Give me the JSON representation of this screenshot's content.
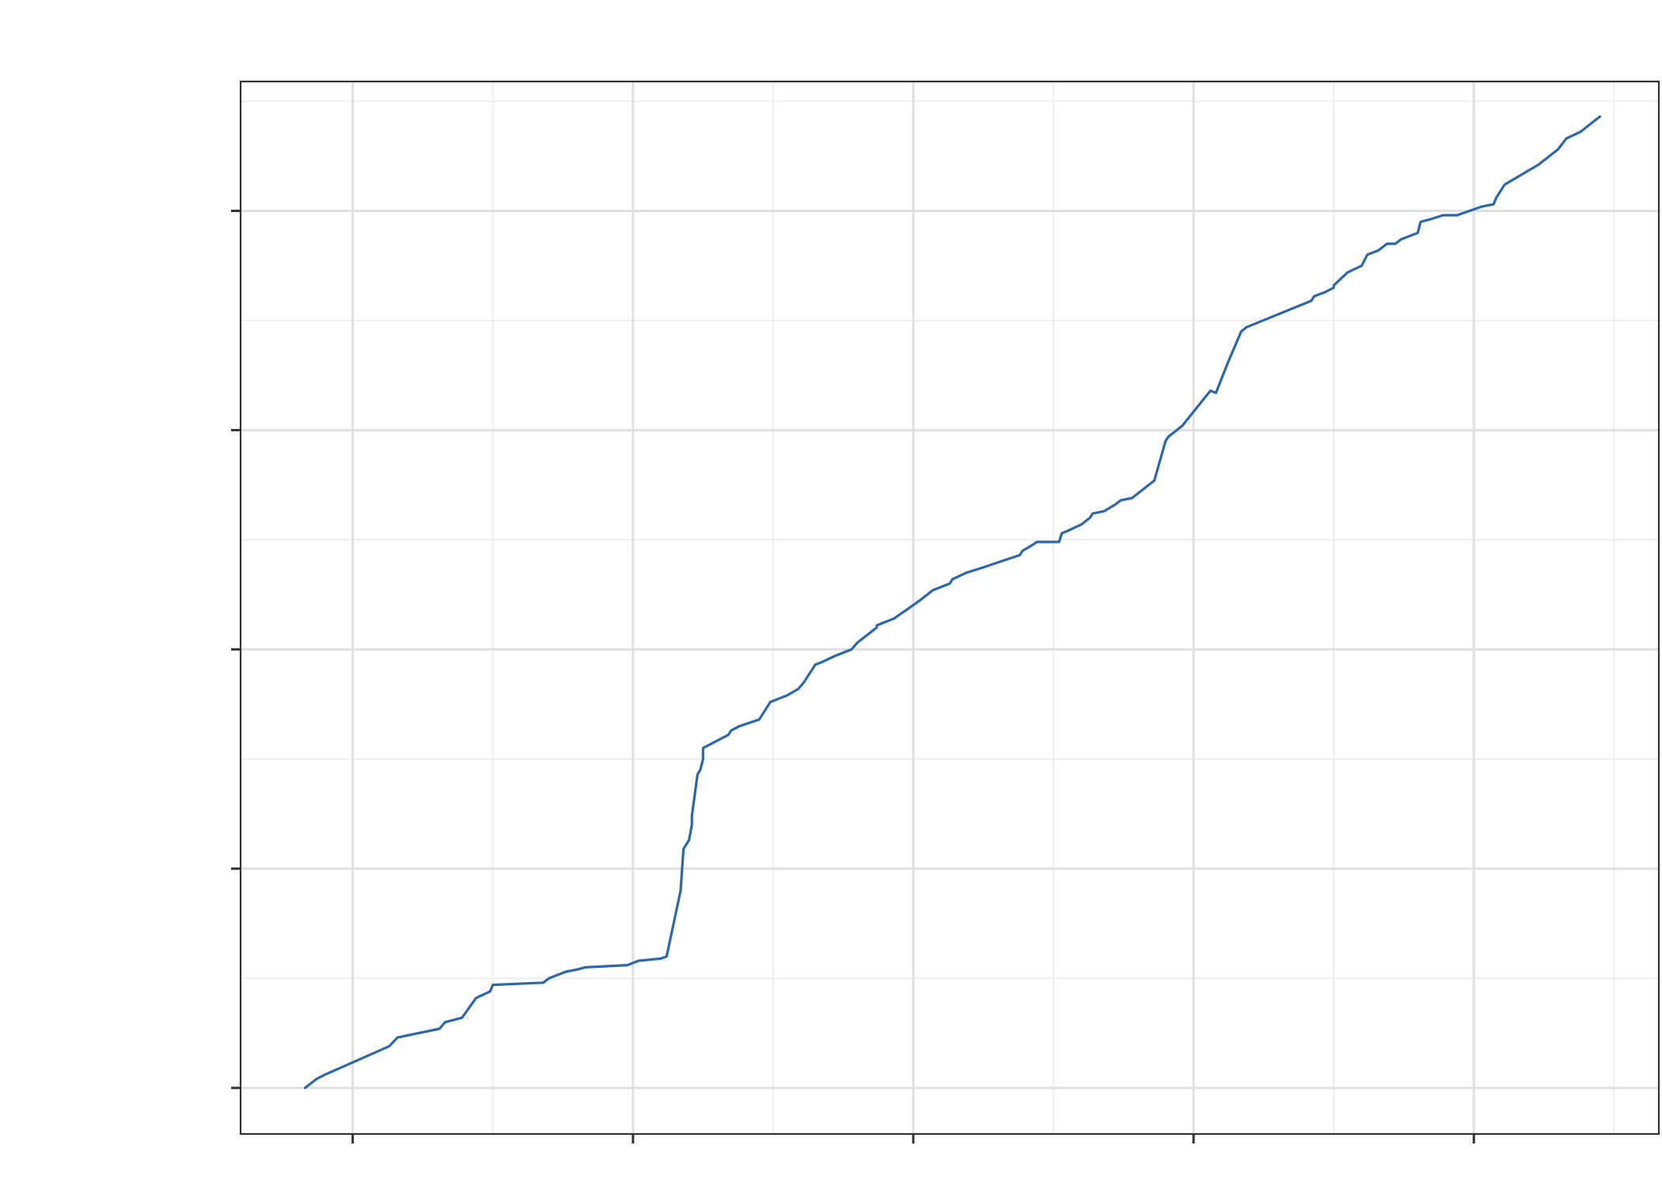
{
  "chart_data": {
    "type": "line",
    "title": "",
    "xlabel": "",
    "ylabel": "",
    "xlim": [
      -0.4,
      4.66
    ],
    "ylim": [
      -0.21,
      4.59
    ],
    "x_major_ticks": [
      0,
      1,
      2,
      3,
      4
    ],
    "x_minor_ticks": [
      0.5,
      1.5,
      2.5,
      3.5,
      4.5
    ],
    "y_major_ticks": [
      0,
      1,
      2,
      3,
      4
    ],
    "y_minor_ticks": [
      0.5,
      1.5,
      2.5,
      3.5,
      4.5
    ],
    "x_tick_labels": [],
    "y_tick_labels": [],
    "grid": true,
    "legend": "none",
    "color": "#2c67ac",
    "series": [
      {
        "x": [
          -0.17,
          -0.13,
          -0.1,
          0.13,
          0.16,
          0.31,
          0.33,
          0.39,
          0.44,
          0.49,
          0.5,
          0.68,
          0.7,
          0.76,
          0.8,
          0.83,
          0.98,
          1.02,
          1.1,
          1.12,
          1.17,
          1.18,
          1.2,
          1.21,
          1.21,
          1.23,
          1.24,
          1.25,
          1.25,
          1.34,
          1.35,
          1.38,
          1.45,
          1.47,
          1.49,
          1.55,
          1.59,
          1.61,
          1.63,
          1.64,
          1.65,
          1.67,
          1.72,
          1.76,
          1.78,
          1.8,
          1.85,
          1.87,
          1.87,
          1.91,
          1.93,
          2.02,
          2.05,
          2.07,
          2.13,
          2.14,
          2.19,
          2.24,
          2.38,
          2.39,
          2.43,
          2.44,
          2.52,
          2.53,
          2.55,
          2.6,
          2.63,
          2.64,
          2.68,
          2.72,
          2.74,
          2.78,
          2.83,
          2.86,
          2.9,
          2.91,
          2.94,
          2.95,
          2.96,
          3.06,
          3.08,
          3.12,
          3.17,
          3.19,
          3.42,
          3.43,
          3.47,
          3.5,
          3.5,
          3.55,
          3.6,
          3.62,
          3.66,
          3.69,
          3.72,
          3.74,
          3.8,
          3.81,
          3.84,
          3.89,
          3.94,
          4.03,
          4.07,
          4.08,
          4.11,
          4.23,
          4.25,
          4.28,
          4.3,
          4.33,
          4.38,
          4.45
        ],
        "y": [
          0,
          0.04,
          0.06,
          0.19,
          0.23,
          0.27,
          0.3,
          0.32,
          0.41,
          0.44,
          0.47,
          0.48,
          0.5,
          0.53,
          0.54,
          0.55,
          0.56,
          0.58,
          0.59,
          0.6,
          0.9,
          1.09,
          1.13,
          1.2,
          1.24,
          1.43,
          1.45,
          1.5,
          1.55,
          1.61,
          1.63,
          1.65,
          1.68,
          1.72,
          1.76,
          1.79,
          1.82,
          1.85,
          1.89,
          1.91,
          1.93,
          1.94,
          1.97,
          1.99,
          2.0,
          2.03,
          2.08,
          2.1,
          2.11,
          2.13,
          2.14,
          2.22,
          2.25,
          2.27,
          2.3,
          2.32,
          2.35,
          2.37,
          2.43,
          2.45,
          2.48,
          2.49,
          2.49,
          2.53,
          2.54,
          2.57,
          2.6,
          2.62,
          2.63,
          2.66,
          2.68,
          2.69,
          2.74,
          2.77,
          2.95,
          2.97,
          3.0,
          3.01,
          3.02,
          3.18,
          3.17,
          3.3,
          3.45,
          3.47,
          3.59,
          3.61,
          3.63,
          3.65,
          3.66,
          3.72,
          3.75,
          3.8,
          3.82,
          3.85,
          3.85,
          3.87,
          3.9,
          3.95,
          3.96,
          3.98,
          3.98,
          4.02,
          4.03,
          4.06,
          4.12,
          4.21,
          4.23,
          4.26,
          4.28,
          4.33,
          4.36,
          4.43
        ]
      }
    ]
  }
}
